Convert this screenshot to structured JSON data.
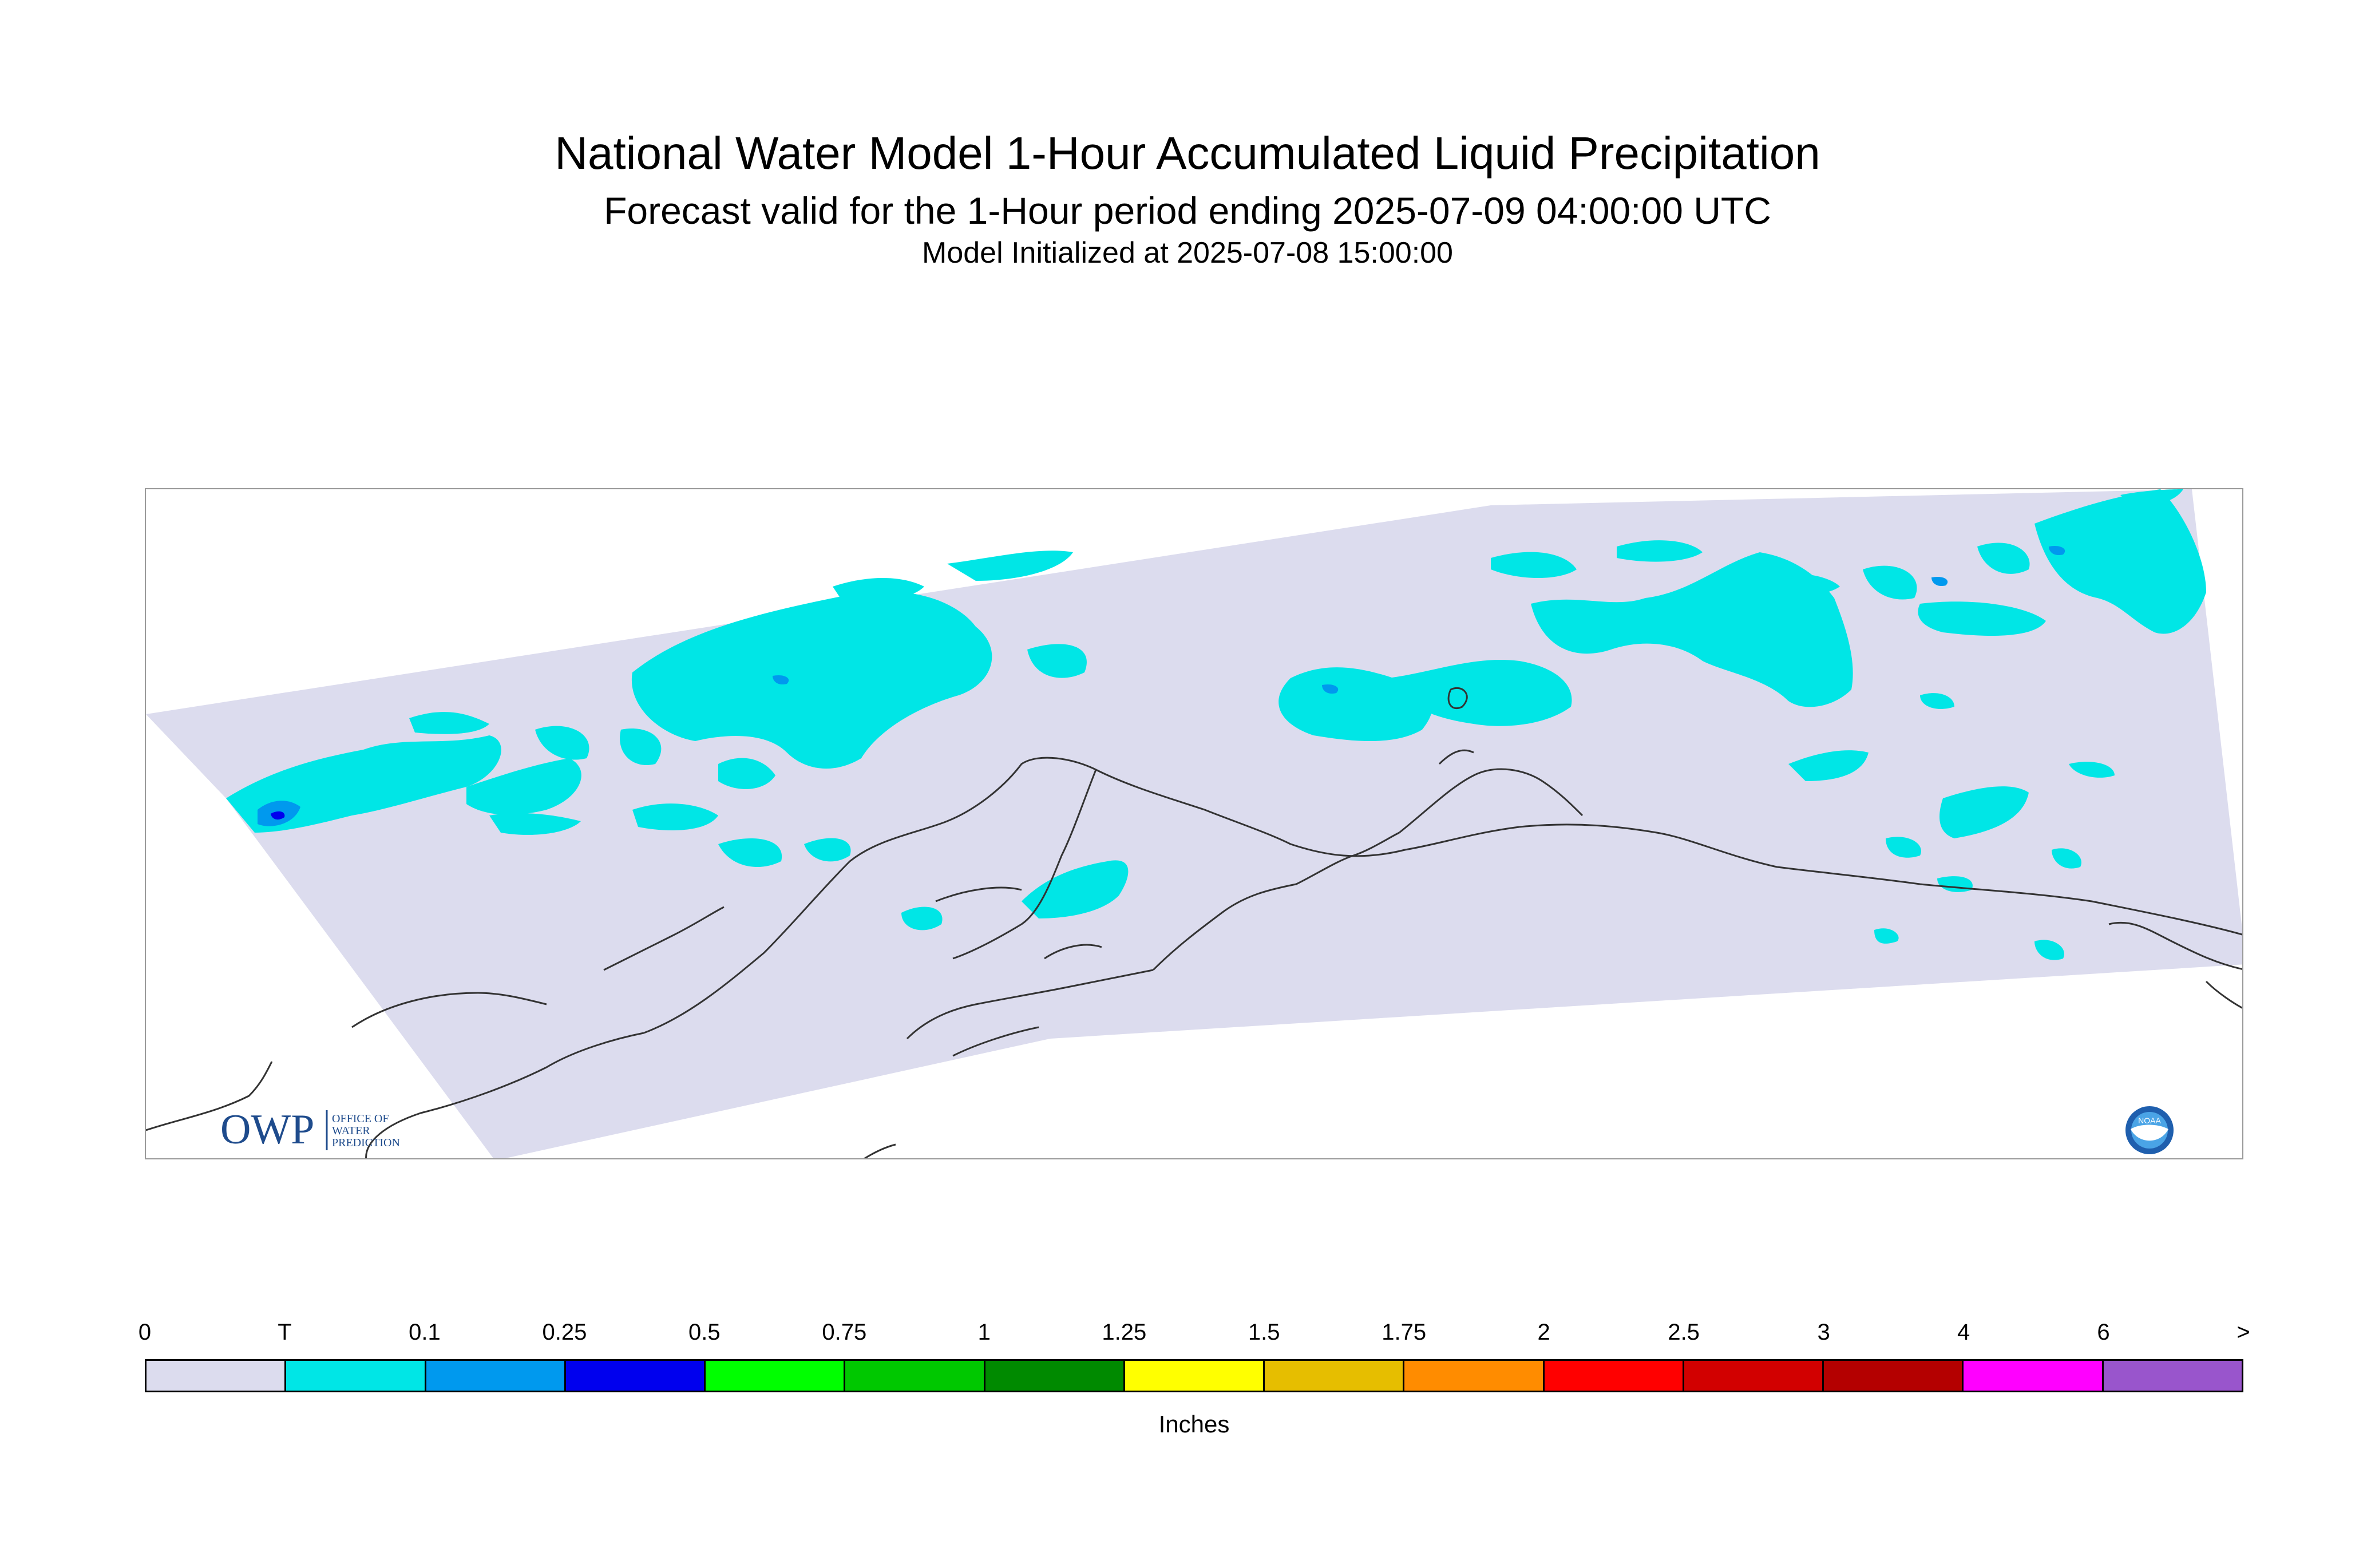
{
  "title": {
    "line1": "National Water Model 1-Hour Accumulated Liquid Precipitation",
    "line2": "Forecast valid for the 1-Hour period ending 2025-07-09 04:00:00 UTC",
    "line3": "Model Initialized at 2025-07-08 15:00:00"
  },
  "logos": {
    "owp_text": "OWP",
    "owp_sub": [
      "OFFICE OF",
      "WATER",
      "PREDICTION"
    ],
    "noaa_text": "NOAA"
  },
  "legend": {
    "ticks": [
      "0",
      "T",
      "0.1",
      "0.25",
      "0.5",
      "0.75",
      "1",
      "1.25",
      "1.5",
      "1.75",
      "2",
      "2.5",
      "3",
      "4",
      "6",
      ">"
    ],
    "colors": [
      "#dcdcee",
      "#00e6e6",
      "#0099ee",
      "#0000ee",
      "#00ff00",
      "#00c800",
      "#008a00",
      "#ffff00",
      "#e6be00",
      "#ff8c00",
      "#ff0000",
      "#d20000",
      "#b40000",
      "#ff00ff",
      "#9955cc"
    ],
    "units": "Inches"
  },
  "colors": {
    "domain_background": "#dcdcee",
    "trace": "#00e6e6",
    "light_blue": "#0099ee",
    "dark_blue": "#0000ee",
    "coastline": "#333333"
  }
}
